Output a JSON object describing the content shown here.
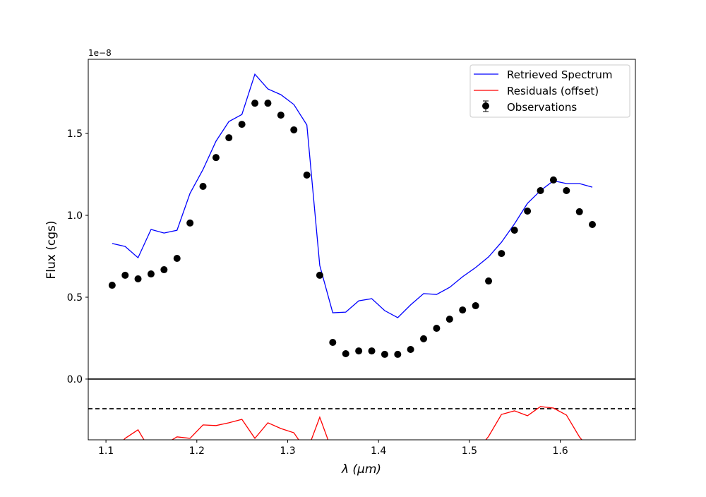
{
  "chart_data": {
    "type": "line",
    "title": "",
    "xlabel": "λ (μm)",
    "ylabel": "Flux (cgs)",
    "y_offset_text": "1e−8",
    "xlim": [
      1.0805,
      1.6827
    ],
    "ylim": [
      -0.371,
      1.953
    ],
    "y_scale_factor": 1e-08,
    "xticks": [
      1.1,
      1.2,
      1.3,
      1.4,
      1.5,
      1.6
    ],
    "xtick_labels": [
      "1.1",
      "1.2",
      "1.3",
      "1.4",
      "1.5",
      "1.6"
    ],
    "yticks": [
      0.0,
      0.5,
      1.0,
      1.5
    ],
    "ytick_labels": [
      "0.0",
      "0.5",
      "1.0",
      "1.5"
    ],
    "grid": false,
    "legend_placement": "top-right",
    "reference_lines": [
      {
        "y": 0.0,
        "style": "solid",
        "color": "#000000"
      },
      {
        "y": -0.181,
        "style": "dashed",
        "color": "#000000"
      }
    ],
    "x": [
      1.1068,
      1.1211,
      1.1353,
      1.1496,
      1.1639,
      1.1782,
      1.1925,
      1.2068,
      1.2211,
      1.2353,
      1.2496,
      1.2639,
      1.2782,
      1.2925,
      1.3068,
      1.3211,
      1.3353,
      1.3496,
      1.3639,
      1.3782,
      1.3925,
      1.4068,
      1.4211,
      1.4353,
      1.4496,
      1.4639,
      1.4782,
      1.4925,
      1.5068,
      1.5211,
      1.5353,
      1.5496,
      1.5639,
      1.5782,
      1.5925,
      1.6068,
      1.6211,
      1.6353
    ],
    "series": [
      {
        "name": "Retrieved Spectrum",
        "kind": "line",
        "color": "#0000ff",
        "values": [
          0.828,
          0.81,
          0.741,
          0.914,
          0.892,
          0.909,
          1.134,
          1.28,
          1.453,
          1.573,
          1.616,
          1.862,
          1.772,
          1.737,
          1.677,
          1.552,
          0.694,
          0.405,
          0.409,
          0.478,
          0.491,
          0.418,
          0.375,
          0.453,
          0.522,
          0.517,
          0.56,
          0.625,
          0.681,
          0.746,
          0.836,
          0.948,
          1.073,
          1.151,
          1.211,
          1.194,
          1.194,
          1.172
        ]
      },
      {
        "name": "Residuals (offset)",
        "kind": "line",
        "color": "#ff0000",
        "values": [
          -0.444,
          -0.362,
          -0.31,
          -0.444,
          -0.4,
          -0.353,
          -0.362,
          -0.28,
          -0.284,
          -0.267,
          -0.246,
          -0.362,
          -0.267,
          -0.302,
          -0.328,
          -0.444,
          -0.233,
          -0.45,
          -0.45,
          -0.45,
          -0.45,
          -0.45,
          -0.45,
          -0.45,
          -0.45,
          -0.45,
          -0.45,
          -0.45,
          -0.45,
          -0.35,
          -0.216,
          -0.194,
          -0.224,
          -0.168,
          -0.177,
          -0.22,
          -0.353,
          -0.45
        ]
      },
      {
        "name": "Observations",
        "kind": "errorbar",
        "color": "#000000",
        "values": [
          0.573,
          0.634,
          0.612,
          0.642,
          0.668,
          0.737,
          0.953,
          1.177,
          1.353,
          1.474,
          1.556,
          1.685,
          1.685,
          1.612,
          1.522,
          1.246,
          0.634,
          0.224,
          0.155,
          0.172,
          0.172,
          0.151,
          0.151,
          0.181,
          0.246,
          0.31,
          0.366,
          0.422,
          0.448,
          0.599,
          0.767,
          0.909,
          1.026,
          1.151,
          1.216,
          1.151,
          1.022,
          0.944
        ]
      }
    ]
  }
}
